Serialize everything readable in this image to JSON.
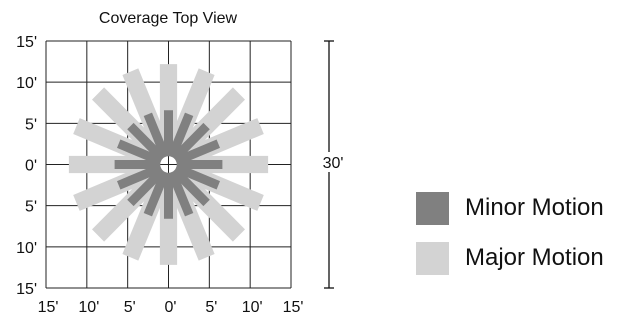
{
  "title": "Coverage Top View",
  "y_ticks": [
    "15'",
    "10'",
    "5'",
    "0'",
    "5'",
    "10'",
    "15'"
  ],
  "x_ticks": [
    "15'",
    "10'",
    "5'",
    "0'",
    "5'",
    "10'",
    "15'"
  ],
  "dimension": {
    "label": "30'",
    "feet": 30
  },
  "range_ft": 15,
  "colors": {
    "minor": "#808080",
    "major": "#d3d3d3",
    "grid": "#222222"
  },
  "coverage": {
    "zone_count": 16,
    "major": {
      "inner_ft": 2,
      "outer_ft": 12.2,
      "width_ft": 2.1
    },
    "minor": {
      "inner_ft": 1,
      "outer_ft": 6.6,
      "width_ft": 1.1
    }
  },
  "legend": [
    {
      "label": "Minor Motion",
      "color_key": "minor"
    },
    {
      "label": "Major Motion",
      "color_key": "major"
    }
  ]
}
